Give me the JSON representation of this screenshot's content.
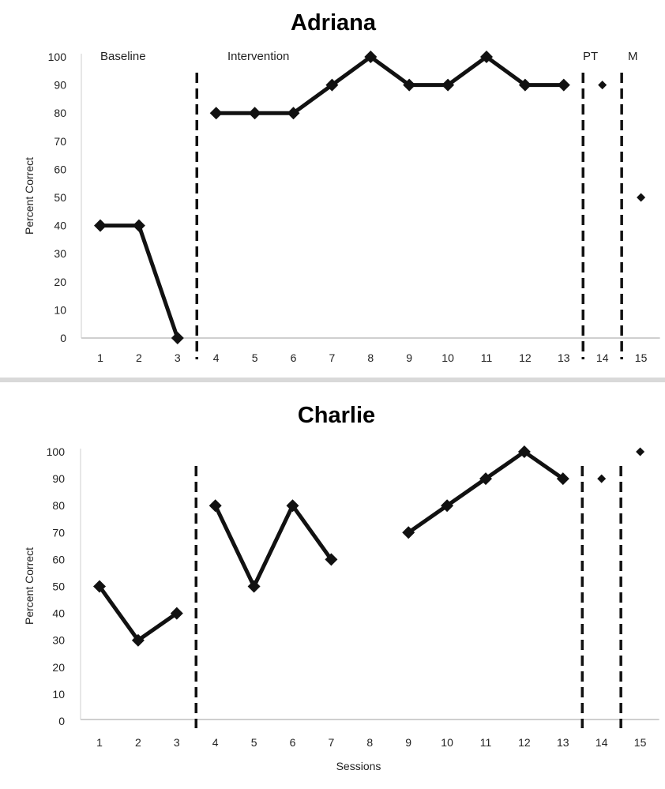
{
  "chart_data": [
    {
      "type": "line",
      "title": "Adriana",
      "xlabel": "",
      "ylabel": "Percent Correct",
      "ylim": [
        0,
        100
      ],
      "yticks": [
        0,
        10,
        20,
        30,
        40,
        50,
        60,
        70,
        80,
        90,
        100
      ],
      "xticks": [
        1,
        2,
        3,
        4,
        5,
        6,
        7,
        8,
        9,
        10,
        11,
        12,
        13,
        14,
        15
      ],
      "phase_labels": [
        "Baseline",
        "Intervention",
        "PT",
        "M"
      ],
      "segments": [
        {
          "x": [
            1,
            2,
            3
          ],
          "y": [
            40,
            40,
            0
          ]
        },
        {
          "x": [
            4,
            5,
            6,
            7,
            8,
            9,
            10,
            11,
            12,
            13
          ],
          "y": [
            80,
            80,
            80,
            90,
            100,
            90,
            90,
            100,
            90,
            90
          ]
        },
        {
          "x": [
            14
          ],
          "y": [
            90
          ]
        },
        {
          "x": [
            15
          ],
          "y": [
            50
          ]
        }
      ],
      "phase_lines": [
        3.5,
        13.5,
        14.5
      ],
      "grid": false
    },
    {
      "type": "line",
      "title": "Charlie",
      "xlabel": "Sessions",
      "ylabel": "Percent Correct",
      "ylim": [
        0,
        100
      ],
      "yticks": [
        0,
        10,
        20,
        30,
        40,
        50,
        60,
        70,
        80,
        90,
        100
      ],
      "xticks": [
        1,
        2,
        3,
        4,
        5,
        6,
        7,
        8,
        9,
        10,
        11,
        12,
        13,
        14,
        15
      ],
      "segments": [
        {
          "x": [
            1,
            2,
            3
          ],
          "y": [
            50,
            30,
            40
          ]
        },
        {
          "x": [
            4,
            5,
            6,
            7
          ],
          "y": [
            80,
            50,
            80,
            60
          ]
        },
        {
          "x": [
            9,
            10,
            11,
            12,
            13
          ],
          "y": [
            70,
            80,
            90,
            100,
            90
          ]
        },
        {
          "x": [
            14
          ],
          "y": [
            90
          ]
        },
        {
          "x": [
            15
          ],
          "y": [
            100
          ]
        }
      ],
      "phase_lines": [
        3.5,
        13.5,
        14.5
      ],
      "grid": false
    }
  ]
}
